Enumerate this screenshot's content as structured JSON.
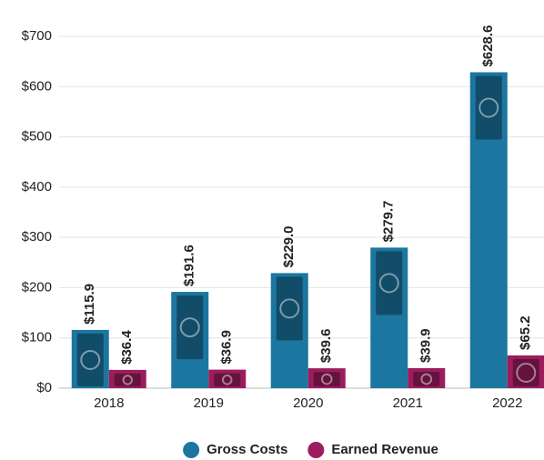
{
  "chart_data": {
    "type": "bar",
    "categories": [
      "2018",
      "2019",
      "2020",
      "2021",
      "2022"
    ],
    "series": [
      {
        "name": "Gross Costs",
        "color": "#1b76a0",
        "values": [
          115.9,
          191.6,
          229.0,
          279.7,
          628.6
        ],
        "value_labels": [
          "$115.9",
          "$191.6",
          "$229.0",
          "$279.7",
          "$628.6"
        ]
      },
      {
        "name": "Earned Revenue",
        "color": "#9b1d5f",
        "values": [
          36.4,
          36.9,
          39.6,
          39.9,
          65.2
        ],
        "value_labels": [
          "$36.4",
          "$36.9",
          "$39.6",
          "$39.9",
          "$65.2"
        ]
      }
    ],
    "ylim": [
      0,
      700
    ],
    "yticks": [
      {
        "value": 0,
        "label": "$0"
      },
      {
        "value": 100,
        "label": "$100"
      },
      {
        "value": 200,
        "label": "$200"
      },
      {
        "value": 300,
        "label": "$300"
      },
      {
        "value": 400,
        "label": "$400"
      },
      {
        "value": 500,
        "label": "$500"
      },
      {
        "value": 600,
        "label": "$600"
      },
      {
        "value": 700,
        "label": "$700"
      }
    ],
    "grid": true,
    "legend": "bottom"
  }
}
